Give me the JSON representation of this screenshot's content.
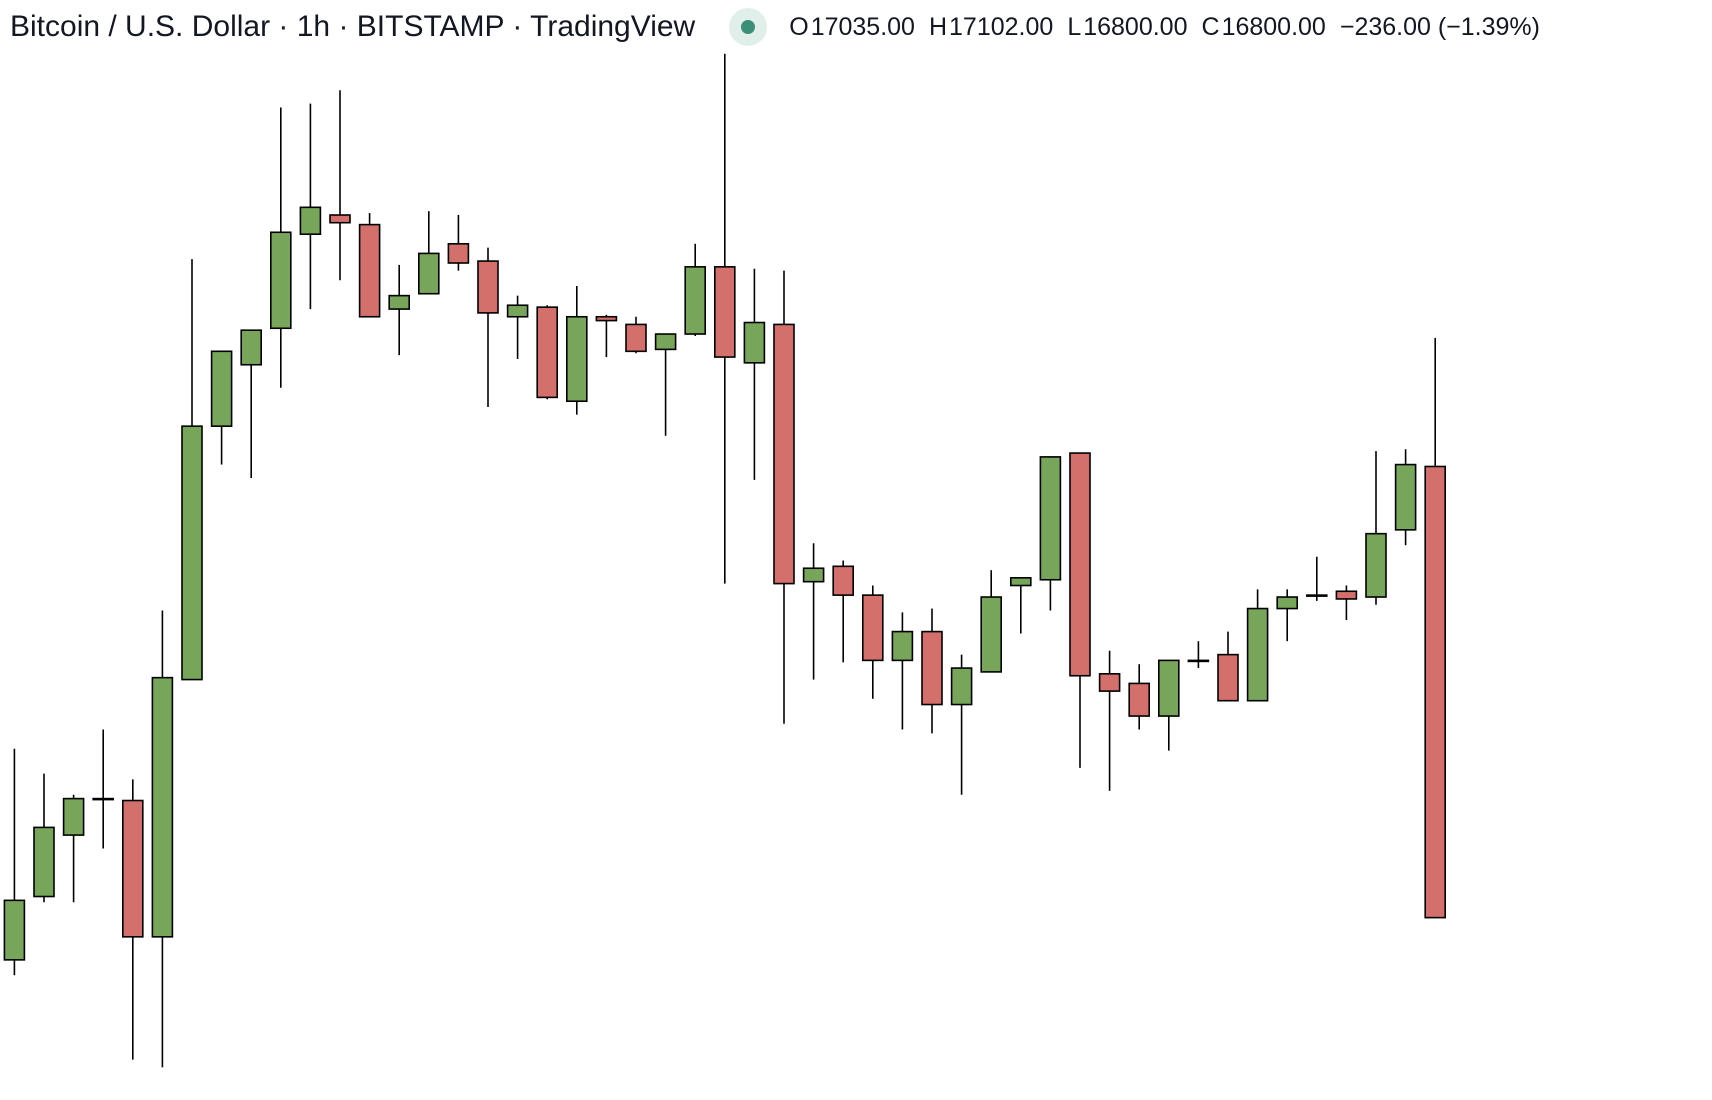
{
  "header": {
    "title": "Bitcoin / U.S. Dollar · 1h · BITSTAMP · TradingView",
    "ohlc": [
      {
        "key": "O",
        "text": "17035.00"
      },
      {
        "key": "H",
        "text": "17102.00"
      },
      {
        "key": "L",
        "text": "16800.00"
      },
      {
        "key": "C",
        "text": "16800.00"
      }
    ],
    "change": "−236.00 (−1.39%)"
  },
  "chart_data": {
    "type": "candlestick",
    "up_color": "#77a65b",
    "down_color": "#d4706b",
    "ylim": [
      16705,
      17278
    ],
    "open": [
      16778,
      16811,
      16843,
      16862,
      16861,
      16790,
      16924,
      17056,
      17088,
      17107,
      17156,
      17166,
      17161,
      17117,
      17125,
      17151,
      17142,
      17113,
      17118,
      17069,
      17113,
      17109,
      17096,
      17104,
      17139,
      17089,
      17109,
      16975,
      16983,
      16968,
      16934,
      16949,
      16911,
      16928,
      16973,
      16976,
      17042,
      16927,
      16922,
      16905,
      16934,
      16937,
      16913,
      16961,
      16968,
      16970,
      16967,
      17002,
      17035
    ],
    "high": [
      16888,
      16875,
      16864,
      16898,
      16872,
      16960,
      17143,
      17095,
      17106,
      17222,
      17224,
      17231,
      17167,
      17140,
      17168,
      17166,
      17149,
      17124,
      17119,
      17129,
      17114,
      17113,
      17104,
      17151,
      17250,
      17138,
      17137,
      16995,
      16986,
      16973,
      16959,
      16961,
      16937,
      16981,
      16977,
      17040,
      17042,
      16939,
      16932,
      16934,
      16944,
      16949,
      16971,
      16971,
      16988,
      16973,
      17043,
      17044,
      17102
    ],
    "low": [
      16770,
      16808,
      16808,
      16836,
      16726,
      16722,
      16924,
      17036,
      17029,
      17076,
      17117,
      17132,
      17113,
      17093,
      17125,
      17137,
      17066,
      17091,
      17070,
      17062,
      17092,
      17094,
      17051,
      17103,
      16974,
      17028,
      16901,
      16924,
      16933,
      16914,
      16898,
      16896,
      16864,
      16928,
      16948,
      16960,
      16878,
      16866,
      16898,
      16887,
      16930,
      16913,
      16913,
      16944,
      16965,
      16955,
      16963,
      16994,
      16800
    ],
    "close": [
      16809,
      16847,
      16862,
      16862,
      16790,
      16925,
      17056,
      17095,
      17106,
      17157,
      17170,
      17162,
      17113,
      17124,
      17146,
      17141,
      17115,
      17119,
      17071,
      17113,
      17111,
      17095,
      17104,
      17139,
      17092,
      17110,
      16974,
      16982,
      16968,
      16934,
      16949,
      16911,
      16930,
      16967,
      16977,
      17040,
      16926,
      16918,
      16905,
      16934,
      16934,
      16913,
      16961,
      16967,
      16968,
      16966,
      17000,
      17036,
      16800
    ]
  }
}
